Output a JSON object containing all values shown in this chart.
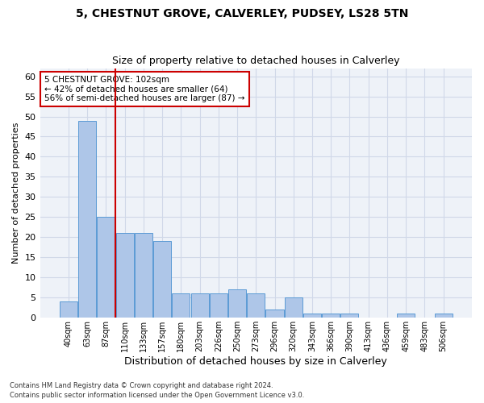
{
  "title1": "5, CHESTNUT GROVE, CALVERLEY, PUDSEY, LS28 5TN",
  "title2": "Size of property relative to detached houses in Calverley",
  "xlabel": "Distribution of detached houses by size in Calverley",
  "ylabel": "Number of detached properties",
  "categories": [
    "40sqm",
    "63sqm",
    "87sqm",
    "110sqm",
    "133sqm",
    "157sqm",
    "180sqm",
    "203sqm",
    "226sqm",
    "250sqm",
    "273sqm",
    "296sqm",
    "320sqm",
    "343sqm",
    "366sqm",
    "390sqm",
    "413sqm",
    "436sqm",
    "459sqm",
    "483sqm",
    "506sqm"
  ],
  "values": [
    4,
    49,
    25,
    21,
    21,
    19,
    6,
    6,
    6,
    7,
    6,
    2,
    5,
    1,
    1,
    1,
    0,
    0,
    1,
    0,
    1
  ],
  "bar_color": "#aec6e8",
  "bar_edgecolor": "#5b9bd5",
  "grid_color": "#d0d8e8",
  "background_color": "#eef2f8",
  "vline_x_index": 2,
  "vline_color": "#cc0000",
  "annotation_lines": [
    "5 CHESTNUT GROVE: 102sqm",
    "← 42% of detached houses are smaller (64)",
    "56% of semi-detached houses are larger (87) →"
  ],
  "box_color": "#cc0000",
  "ylim": [
    0,
    62
  ],
  "yticks": [
    0,
    5,
    10,
    15,
    20,
    25,
    30,
    35,
    40,
    45,
    50,
    55,
    60
  ],
  "footnote1": "Contains HM Land Registry data © Crown copyright and database right 2024.",
  "footnote2": "Contains public sector information licensed under the Open Government Licence v3.0."
}
